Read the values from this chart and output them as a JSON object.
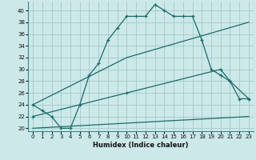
{
  "title": "",
  "xlabel": "Humidex (Indice chaleur)",
  "background_color": "#cce8e8",
  "grid_color": "#aacece",
  "line_color": "#1a6b6b",
  "xlim": [
    -0.5,
    23.5
  ],
  "ylim": [
    19.5,
    41.5
  ],
  "xticks": [
    0,
    1,
    2,
    3,
    4,
    5,
    6,
    7,
    8,
    9,
    10,
    11,
    12,
    13,
    14,
    15,
    16,
    17,
    18,
    19,
    20,
    21,
    22,
    23
  ],
  "yticks": [
    20,
    22,
    24,
    26,
    28,
    30,
    32,
    34,
    36,
    38,
    40
  ],
  "series1_x": [
    0,
    1,
    2,
    3,
    4,
    5,
    6,
    7,
    8,
    9,
    10,
    11,
    12,
    13,
    14,
    15,
    16,
    17,
    18,
    19,
    20,
    21,
    22,
    23
  ],
  "series1_y": [
    24,
    23,
    22,
    20,
    20,
    24,
    29,
    31,
    35,
    37,
    39,
    39,
    39,
    41,
    40,
    39,
    39,
    39,
    35,
    30,
    29,
    28,
    25,
    25
  ],
  "series2_x": [
    0,
    10,
    23
  ],
  "series2_y": [
    24,
    32,
    38
  ],
  "series3_x": [
    0,
    10,
    20,
    21,
    23
  ],
  "series3_y": [
    22,
    26,
    30,
    28,
    25
  ],
  "series4_x": [
    0,
    23
  ],
  "series4_y": [
    20,
    22
  ]
}
